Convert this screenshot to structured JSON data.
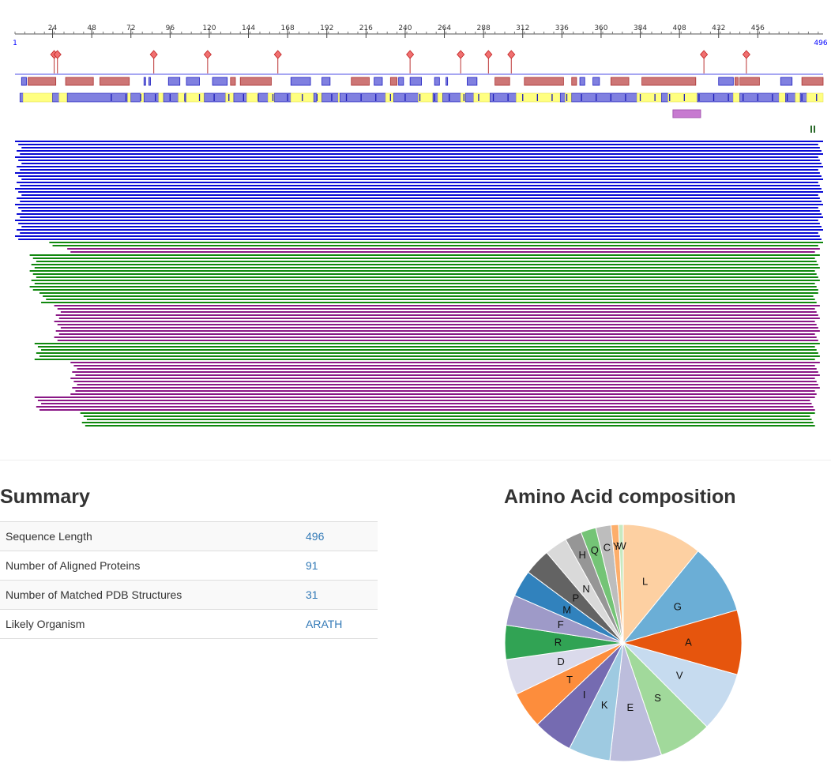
{
  "viewer": {
    "ruler": {
      "start_label": "1",
      "end_label": "496",
      "length": 496,
      "ticks": [
        "24",
        "48",
        "72",
        "96",
        "120",
        "144",
        "168",
        "192",
        "216",
        "240",
        "264",
        "288",
        "312",
        "336",
        "360",
        "384",
        "408",
        "432",
        "456"
      ]
    },
    "site_markers": [
      25,
      27,
      86,
      119,
      162,
      243,
      274,
      291,
      305,
      423,
      449
    ],
    "track_top_features": [
      {
        "s": 5,
        "e": 8,
        "k": "b"
      },
      {
        "s": 9,
        "e": 26,
        "k": "r"
      },
      {
        "s": 32,
        "e": 49,
        "k": "r"
      },
      {
        "s": 53,
        "e": 71,
        "k": "r"
      },
      {
        "s": 80,
        "e": 81,
        "k": "b"
      },
      {
        "s": 83,
        "e": 84,
        "k": "b"
      },
      {
        "s": 95,
        "e": 102,
        "k": "b"
      },
      {
        "s": 106,
        "e": 114,
        "k": "b"
      },
      {
        "s": 122,
        "e": 131,
        "k": "b"
      },
      {
        "s": 133,
        "e": 136,
        "k": "r"
      },
      {
        "s": 139,
        "e": 158,
        "k": "r"
      },
      {
        "s": 170,
        "e": 182,
        "k": "b"
      },
      {
        "s": 189,
        "e": 194,
        "k": "b"
      },
      {
        "s": 207,
        "e": 218,
        "k": "r"
      },
      {
        "s": 221,
        "e": 226,
        "k": "b"
      },
      {
        "s": 231,
        "e": 235,
        "k": "r"
      },
      {
        "s": 236,
        "e": 239,
        "k": "b"
      },
      {
        "s": 243,
        "e": 250,
        "k": "b"
      },
      {
        "s": 258,
        "e": 261,
        "k": "b"
      },
      {
        "s": 265,
        "e": 266,
        "k": "b"
      },
      {
        "s": 278,
        "e": 284,
        "k": "b"
      },
      {
        "s": 295,
        "e": 304,
        "k": "r"
      },
      {
        "s": 313,
        "e": 337,
        "k": "r"
      },
      {
        "s": 342,
        "e": 345,
        "k": "r"
      },
      {
        "s": 347,
        "e": 350,
        "k": "b"
      },
      {
        "s": 355,
        "e": 359,
        "k": "b"
      },
      {
        "s": 366,
        "e": 377,
        "k": "r"
      },
      {
        "s": 385,
        "e": 418,
        "k": "r"
      },
      {
        "s": 432,
        "e": 441,
        "k": "b"
      },
      {
        "s": 442,
        "e": 444,
        "k": "r"
      },
      {
        "s": 445,
        "e": 457,
        "k": "r"
      },
      {
        "s": 470,
        "e": 477,
        "k": "b"
      },
      {
        "s": 483,
        "e": 496,
        "k": "r"
      }
    ],
    "track_disorder": [
      {
        "s": 4,
        "e": 6,
        "k": "b"
      },
      {
        "s": 6,
        "e": 24,
        "k": "y"
      },
      {
        "s": 24,
        "e": 28,
        "k": "b"
      },
      {
        "s": 28,
        "e": 33,
        "k": "y"
      },
      {
        "s": 33,
        "e": 70,
        "k": "b"
      },
      {
        "s": 70,
        "e": 72,
        "k": "y"
      },
      {
        "s": 72,
        "e": 78,
        "k": "b"
      },
      {
        "s": 78,
        "e": 80,
        "k": "y"
      },
      {
        "s": 80,
        "e": 89,
        "k": "b"
      },
      {
        "s": 89,
        "e": 92,
        "k": "y"
      },
      {
        "s": 92,
        "e": 101,
        "k": "b"
      },
      {
        "s": 101,
        "e": 105,
        "k": "y"
      },
      {
        "s": 105,
        "e": 106,
        "k": "b"
      },
      {
        "s": 106,
        "e": 117,
        "k": "y"
      },
      {
        "s": 117,
        "e": 130,
        "k": "b"
      },
      {
        "s": 130,
        "e": 135,
        "k": "y"
      },
      {
        "s": 135,
        "e": 143,
        "k": "b"
      },
      {
        "s": 143,
        "e": 150,
        "k": "y"
      },
      {
        "s": 150,
        "e": 156,
        "k": "b"
      },
      {
        "s": 156,
        "e": 160,
        "k": "y"
      },
      {
        "s": 160,
        "e": 170,
        "k": "b"
      },
      {
        "s": 170,
        "e": 184,
        "k": "y"
      },
      {
        "s": 184,
        "e": 186,
        "k": "b"
      },
      {
        "s": 186,
        "e": 189,
        "k": "y"
      },
      {
        "s": 189,
        "e": 199,
        "k": "b"
      },
      {
        "s": 199,
        "e": 200,
        "k": "y"
      },
      {
        "s": 200,
        "e": 228,
        "k": "b"
      },
      {
        "s": 228,
        "e": 233,
        "k": "y"
      },
      {
        "s": 233,
        "e": 248,
        "k": "b"
      },
      {
        "s": 248,
        "e": 257,
        "k": "y"
      },
      {
        "s": 257,
        "e": 260,
        "k": "b"
      },
      {
        "s": 260,
        "e": 263,
        "k": "y"
      },
      {
        "s": 263,
        "e": 274,
        "k": "b"
      },
      {
        "s": 274,
        "e": 277,
        "k": "y"
      },
      {
        "s": 277,
        "e": 282,
        "k": "b"
      },
      {
        "s": 282,
        "e": 292,
        "k": "y"
      },
      {
        "s": 292,
        "e": 308,
        "k": "b"
      },
      {
        "s": 308,
        "e": 335,
        "k": "y"
      },
      {
        "s": 335,
        "e": 338,
        "k": "b"
      },
      {
        "s": 338,
        "e": 342,
        "k": "y"
      },
      {
        "s": 342,
        "e": 382,
        "k": "b"
      },
      {
        "s": 382,
        "e": 397,
        "k": "y"
      },
      {
        "s": 397,
        "e": 401,
        "k": "b"
      },
      {
        "s": 401,
        "e": 419,
        "k": "y"
      },
      {
        "s": 419,
        "e": 441,
        "k": "b"
      },
      {
        "s": 441,
        "e": 445,
        "k": "y"
      },
      {
        "s": 445,
        "e": 469,
        "k": "b"
      },
      {
        "s": 469,
        "e": 473,
        "k": "y"
      },
      {
        "s": 473,
        "e": 479,
        "k": "b"
      },
      {
        "s": 479,
        "e": 482,
        "k": "y"
      },
      {
        "s": 482,
        "e": 486,
        "k": "b"
      },
      {
        "s": 486,
        "e": 496,
        "k": "y"
      }
    ],
    "domain_features": [
      {
        "s": 404,
        "e": 421,
        "label": ""
      }
    ],
    "alignment_groups": [
      {
        "color": "#0a0ad4",
        "count": 32,
        "start": 1,
        "end": 496
      },
      {
        "color": "#10880e",
        "count": 2,
        "start": 22,
        "end": 496
      },
      {
        "color": "#8a1786",
        "count": 2,
        "start": 33,
        "end": 494
      },
      {
        "color": "#10880e",
        "count": 12,
        "start": 10,
        "end": 494
      },
      {
        "color": "#10880e",
        "count": 4,
        "start": 16,
        "end": 493
      },
      {
        "color": "#8a1786",
        "count": 12,
        "start": 25,
        "end": 494
      },
      {
        "color": "#10880e",
        "count": 6,
        "start": 13,
        "end": 494
      },
      {
        "color": "#8a1786",
        "count": 11,
        "start": 35,
        "end": 494
      },
      {
        "color": "#8a1786",
        "count": 5,
        "start": 13,
        "end": 491
      },
      {
        "color": "#10880e",
        "count": 5,
        "start": 41,
        "end": 491
      }
    ],
    "colors": {
      "feature_red": "#cd7676",
      "feature_blue": "#8080e0",
      "disorder_yellow": "#ffff80",
      "domain_purple": "#c77ad0",
      "site_marker": "#f07070",
      "ruler_blue": "#0000ff"
    }
  },
  "summary": {
    "title": "Summary",
    "rows": [
      {
        "label": "Sequence Length",
        "value": "496"
      },
      {
        "label": "Number of Aligned Proteins",
        "value": "91"
      },
      {
        "label": "Number of Matched PDB Structures",
        "value": "31"
      },
      {
        "label": "Likely Organism",
        "value": "ARATH"
      }
    ]
  },
  "amino_acid": {
    "title": "Amino Acid composition",
    "chart_data": {
      "type": "pie",
      "title": "Amino Acid composition",
      "categories": [
        "L",
        "G",
        "A",
        "V",
        "S",
        "E",
        "K",
        "I",
        "T",
        "D",
        "R",
        "F",
        "M",
        "P",
        "N",
        "H",
        "Q",
        "C",
        "Y",
        "W"
      ],
      "values": [
        10.5,
        9.3,
        8.5,
        7.9,
        7.0,
        6.8,
        5.5,
        5.2,
        4.8,
        4.7,
        4.5,
        4.0,
        3.5,
        3.5,
        3.0,
        2.2,
        2.0,
        2.0,
        1.0,
        0.6
      ],
      "colors": [
        "#fdd0a2",
        "#6baed6",
        "#e6550d",
        "#c6dbef",
        "#a1d99b",
        "#bcbddc",
        "#9ecae1",
        "#756bb1",
        "#fd8d3c",
        "#dadaeb",
        "#31a354",
        "#9e9ac8",
        "#3182bd",
        "#636363",
        "#d9d9d9",
        "#969696",
        "#74c476",
        "#bdbdbd",
        "#fdae6b",
        "#c7e9c0"
      ]
    }
  }
}
